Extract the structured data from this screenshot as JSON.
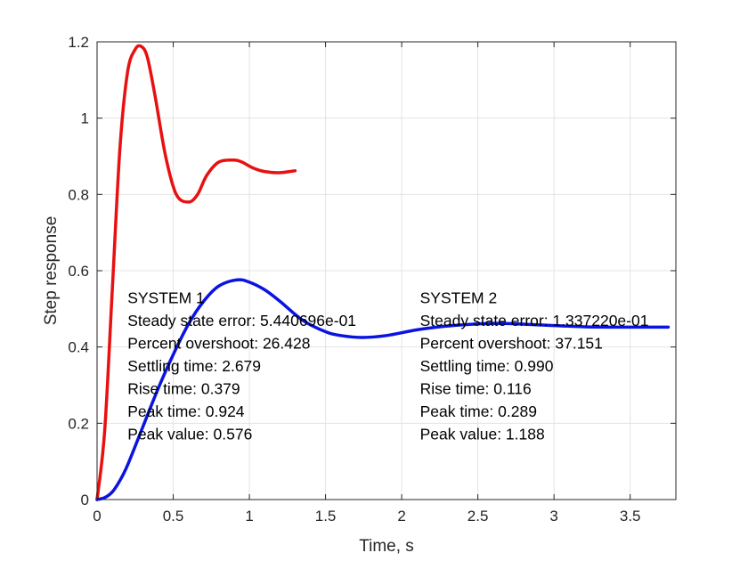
{
  "chart_data": {
    "type": "line",
    "xlabel": "Time, s",
    "ylabel": "Step response",
    "xlim": [
      0,
      3.8
    ],
    "ylim": [
      0,
      1.2
    ],
    "xticks": [
      0,
      0.5,
      1,
      1.5,
      2,
      2.5,
      3,
      3.5
    ],
    "xtick_labels": [
      "0",
      "0.5",
      "1",
      "1.5",
      "2",
      "2.5",
      "3",
      "3.5"
    ],
    "yticks": [
      0,
      0.2,
      0.4,
      0.6,
      0.8,
      1.0,
      1.2
    ],
    "ytick_labels": [
      "0",
      "0.2",
      "0.4",
      "0.6",
      "0.8",
      "1",
      "1.2"
    ],
    "grid": true,
    "series": [
      {
        "color": "#e81010",
        "x": [
          0,
          0.05,
          0.1,
          0.15,
          0.2,
          0.25,
          0.29,
          0.33,
          0.38,
          0.45,
          0.52,
          0.6,
          0.66,
          0.72,
          0.8,
          0.9,
          0.95,
          1.02,
          1.1,
          1.2,
          1.3
        ],
        "y": [
          0,
          0.18,
          0.55,
          0.92,
          1.12,
          1.18,
          1.188,
          1.16,
          1.06,
          0.9,
          0.8,
          0.78,
          0.8,
          0.85,
          0.885,
          0.89,
          0.885,
          0.87,
          0.86,
          0.857,
          0.862
        ]
      },
      {
        "color": "#0a14e0",
        "x": [
          0,
          0.05,
          0.1,
          0.15,
          0.2,
          0.3,
          0.4,
          0.5,
          0.6,
          0.7,
          0.8,
          0.92,
          1.0,
          1.1,
          1.2,
          1.35,
          1.5,
          1.6,
          1.74,
          1.9,
          2.1,
          2.3,
          2.6,
          2.9,
          3.2,
          3.5,
          3.75
        ],
        "y": [
          0,
          0.005,
          0.02,
          0.05,
          0.09,
          0.19,
          0.29,
          0.38,
          0.46,
          0.52,
          0.56,
          0.576,
          0.57,
          0.55,
          0.52,
          0.47,
          0.44,
          0.43,
          0.425,
          0.43,
          0.445,
          0.455,
          0.462,
          0.458,
          0.453,
          0.452,
          0.452
        ]
      }
    ],
    "annotations": [
      {
        "x": 0.2,
        "y": 0.515,
        "lines": [
          "SYSTEM 1",
          "Steady state error: 5.440696e-01",
          "Percent overshoot: 26.428",
          "Settling time: 2.679",
          "Rise time: 0.379",
          "Peak time: 0.924",
          "Peak value: 0.576"
        ]
      },
      {
        "x": 2.12,
        "y": 0.515,
        "lines": [
          "SYSTEM 2",
          "Steady state error: 1.337220e-01",
          "Percent overshoot: 37.151",
          "Settling time: 0.990",
          "Rise time: 0.116",
          "Peak time: 0.289",
          "Peak value: 1.188"
        ]
      }
    ]
  }
}
